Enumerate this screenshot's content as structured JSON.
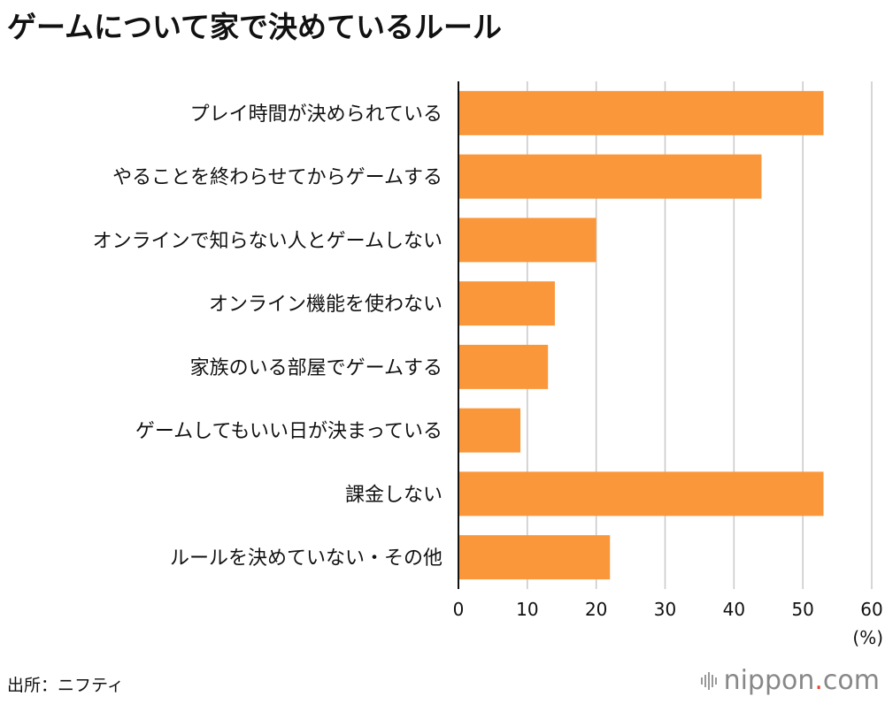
{
  "title": "ゲームについて家で決めているルール",
  "source": "出所：ニフティ",
  "brand": {
    "name": "nippon",
    "dot": ".",
    "tld": "com"
  },
  "colors": {
    "bar": "#FA973A",
    "grid": "#c8c8c8",
    "axis": "#111111"
  },
  "chart_data": {
    "type": "bar",
    "orientation": "horizontal",
    "title": "ゲームについて家で決めているルール",
    "categories": [
      "プレイ時間が決められている",
      "やることを終わらせてからゲームする",
      "オンラインで知らない人とゲームしない",
      "オンライン機能を使わない",
      "家族のいる部屋でゲームする",
      "ゲームしてもいい日が決まっている",
      "課金しない",
      "ルールを決めていない・その他"
    ],
    "values": [
      53,
      44,
      20,
      14,
      13,
      9,
      53,
      22
    ],
    "xlim": [
      0,
      60
    ],
    "xticks": [
      0,
      10,
      20,
      30,
      40,
      50,
      60
    ],
    "xlabel": "(%)",
    "grid": true
  }
}
